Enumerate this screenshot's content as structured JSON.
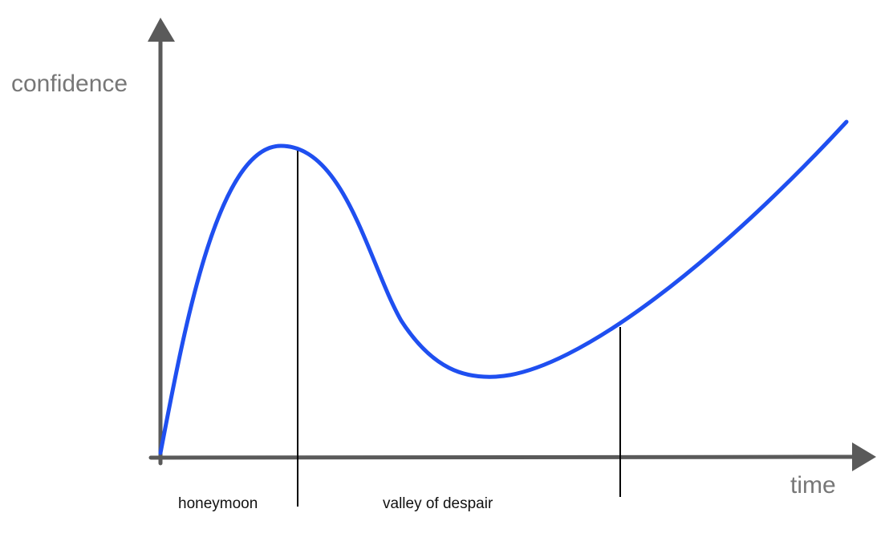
{
  "axes": {
    "y_label": "confidence",
    "x_label": "time"
  },
  "phases": [
    {
      "label": "honeymoon"
    },
    {
      "label": "valley of despair"
    }
  ]
}
